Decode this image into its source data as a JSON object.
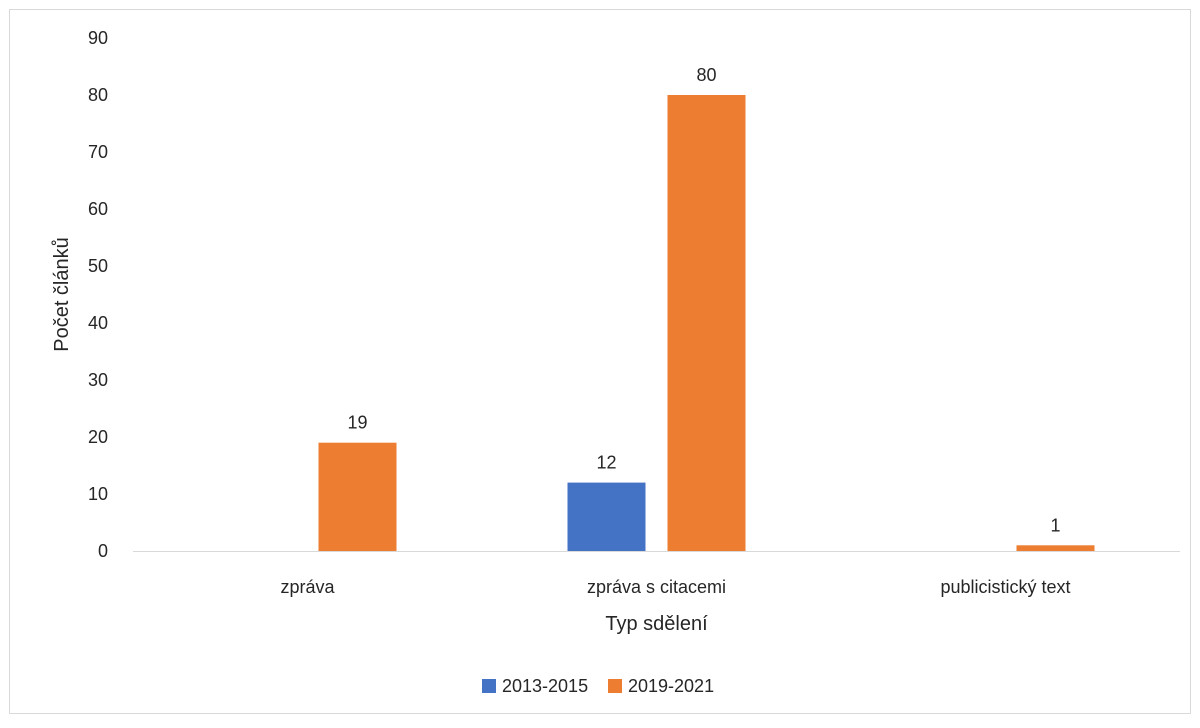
{
  "chart_data": {
    "type": "bar",
    "title": "",
    "xlabel": "Typ sdělení",
    "ylabel": "Počet článků",
    "categories": [
      "zpráva",
      "zpráva s citacemi",
      "publicistický text"
    ],
    "series": [
      {
        "name": "2013-2015",
        "color": "#4472C4",
        "values": [
          0,
          12,
          0
        ],
        "labels": [
          "",
          "12",
          ""
        ]
      },
      {
        "name": "2019-2021",
        "color": "#ED7D31",
        "values": [
          19,
          80,
          1
        ],
        "labels": [
          "19",
          "80",
          "1"
        ]
      }
    ],
    "ylim": [
      0,
      90
    ],
    "yticks": [
      "0",
      "10",
      "20",
      "30",
      "40",
      "50",
      "60",
      "70",
      "80",
      "90"
    ],
    "grid": false,
    "legend_position": "bottom"
  }
}
